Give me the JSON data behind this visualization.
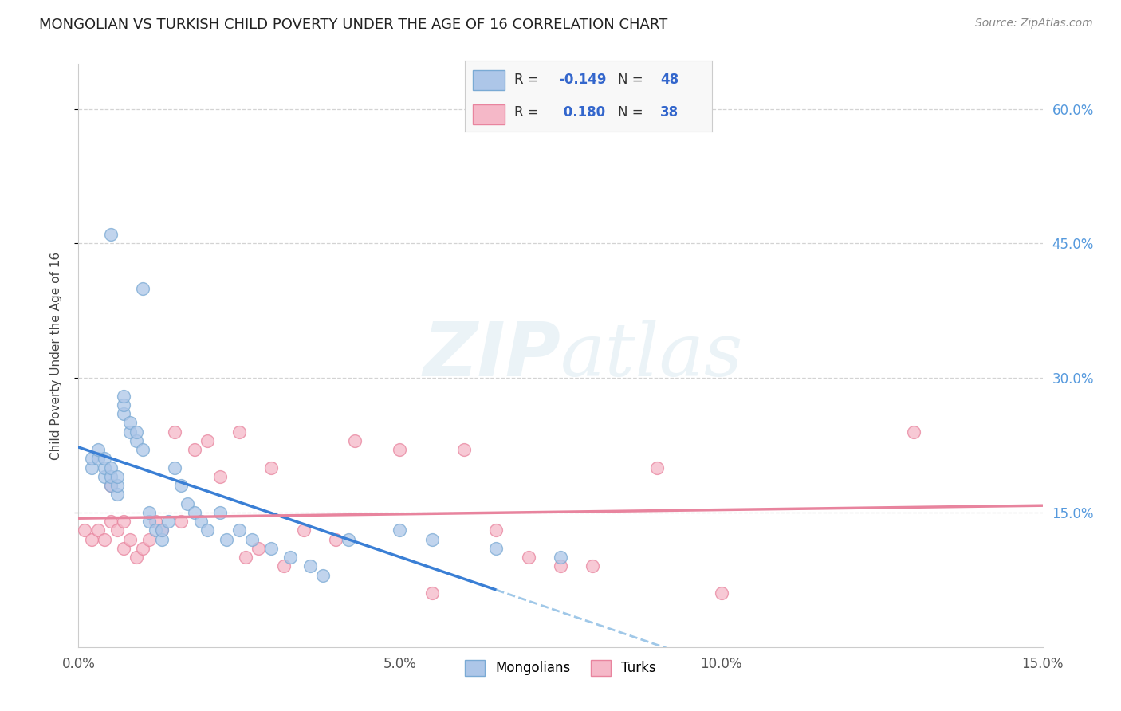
{
  "title": "MONGOLIAN VS TURKISH CHILD POVERTY UNDER THE AGE OF 16 CORRELATION CHART",
  "source": "Source: ZipAtlas.com",
  "ylabel": "Child Poverty Under the Age of 16",
  "xlim": [
    0.0,
    0.15
  ],
  "ylim": [
    0.0,
    0.65
  ],
  "xtick_vals": [
    0.0,
    0.05,
    0.1,
    0.15
  ],
  "xtick_labels": [
    "0.0%",
    "5.0%",
    "10.0%",
    "15.0%"
  ],
  "ytick_vals_right": [
    0.15,
    0.3,
    0.45,
    0.6
  ],
  "ytick_labels_right": [
    "15.0%",
    "30.0%",
    "45.0%",
    "60.0%"
  ],
  "mongolian_color": "#adc6e8",
  "turkish_color": "#f5b8c8",
  "mongolian_edge": "#7aaad4",
  "turkish_edge": "#e8849e",
  "trend_mongolian_color": "#3a7fd5",
  "trend_turkish_color": "#e8849e",
  "trend_mongolian_dashed_color": "#a0c8e8",
  "legend_mongolian_R": "-0.149",
  "legend_mongolian_N": "48",
  "legend_turkish_R": "0.180",
  "legend_turkish_N": "38",
  "mongolian_x": [
    0.005,
    0.01,
    0.002,
    0.002,
    0.003,
    0.003,
    0.004,
    0.004,
    0.004,
    0.005,
    0.005,
    0.005,
    0.006,
    0.006,
    0.006,
    0.007,
    0.007,
    0.007,
    0.008,
    0.008,
    0.009,
    0.009,
    0.01,
    0.011,
    0.011,
    0.012,
    0.013,
    0.013,
    0.014,
    0.015,
    0.016,
    0.017,
    0.018,
    0.019,
    0.02,
    0.022,
    0.023,
    0.025,
    0.027,
    0.03,
    0.033,
    0.036,
    0.038,
    0.042,
    0.05,
    0.055,
    0.065,
    0.075
  ],
  "mongolian_y": [
    0.46,
    0.4,
    0.2,
    0.21,
    0.21,
    0.22,
    0.19,
    0.2,
    0.21,
    0.18,
    0.19,
    0.2,
    0.17,
    0.18,
    0.19,
    0.26,
    0.27,
    0.28,
    0.24,
    0.25,
    0.23,
    0.24,
    0.22,
    0.14,
    0.15,
    0.13,
    0.12,
    0.13,
    0.14,
    0.2,
    0.18,
    0.16,
    0.15,
    0.14,
    0.13,
    0.15,
    0.12,
    0.13,
    0.12,
    0.11,
    0.1,
    0.09,
    0.08,
    0.12,
    0.13,
    0.12,
    0.11,
    0.1
  ],
  "turkish_x": [
    0.001,
    0.002,
    0.003,
    0.004,
    0.005,
    0.005,
    0.006,
    0.007,
    0.007,
    0.008,
    0.009,
    0.01,
    0.011,
    0.012,
    0.013,
    0.015,
    0.016,
    0.018,
    0.02,
    0.022,
    0.025,
    0.026,
    0.028,
    0.03,
    0.032,
    0.035,
    0.04,
    0.043,
    0.05,
    0.055,
    0.06,
    0.065,
    0.07,
    0.075,
    0.08,
    0.09,
    0.1,
    0.13
  ],
  "turkish_y": [
    0.13,
    0.12,
    0.13,
    0.12,
    0.14,
    0.18,
    0.13,
    0.11,
    0.14,
    0.12,
    0.1,
    0.11,
    0.12,
    0.14,
    0.13,
    0.24,
    0.14,
    0.22,
    0.23,
    0.19,
    0.24,
    0.1,
    0.11,
    0.2,
    0.09,
    0.13,
    0.12,
    0.23,
    0.22,
    0.06,
    0.22,
    0.13,
    0.1,
    0.09,
    0.09,
    0.2,
    0.06,
    0.24
  ],
  "watermark_zip": "ZIP",
  "watermark_atlas": "atlas",
  "background_color": "#ffffff",
  "grid_color": "#c8c8c8",
  "trend_mong_x0": 0.0,
  "trend_mong_x_solid_end": 0.065,
  "trend_mong_x_dash_end": 0.15,
  "trend_turk_x0": 0.0,
  "trend_turk_x_end": 0.15
}
